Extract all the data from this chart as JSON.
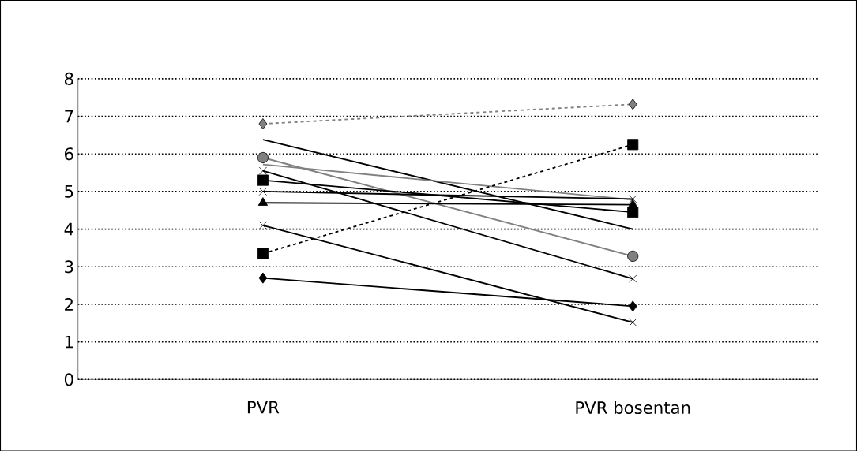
{
  "chart_data": {
    "type": "line",
    "categories": [
      "PVR",
      "PVR bosentan"
    ],
    "ylim": [
      0,
      8
    ],
    "yticks": [
      0,
      1,
      2,
      3,
      4,
      5,
      6,
      7,
      8
    ],
    "grid": "y",
    "series": [
      {
        "color": "#808080",
        "values": [
          6.8,
          7.32
        ],
        "marker": "diamond",
        "line_style": "dashed"
      },
      {
        "color": "#000000",
        "values": [
          6.38,
          4.0
        ],
        "marker": "none",
        "line_style": "solid"
      },
      {
        "color": "#808080",
        "values": [
          5.9,
          3.28
        ],
        "marker": "circle",
        "line_style": "solid"
      },
      {
        "color": "#808080",
        "values": [
          5.72,
          4.78
        ],
        "marker": "none",
        "line_style": "solid"
      },
      {
        "color": "#000000",
        "values": [
          5.55,
          2.68
        ],
        "marker": "cross",
        "line_style": "solid"
      },
      {
        "color": "#000000",
        "values": [
          5.3,
          4.45
        ],
        "marker": "square",
        "line_style": "solid"
      },
      {
        "color": "#000000",
        "values": [
          5.0,
          4.8
        ],
        "marker": "cross",
        "line_style": "solid"
      },
      {
        "color": "#000000",
        "values": [
          4.7,
          4.65
        ],
        "marker": "triangle",
        "line_style": "solid"
      },
      {
        "color": "#000000",
        "values": [
          4.1,
          1.52
        ],
        "marker": "cross",
        "line_style": "solid"
      },
      {
        "color": "#000000",
        "values": [
          3.35,
          6.25
        ],
        "marker": "square",
        "line_style": "dashed"
      },
      {
        "color": "#000000",
        "values": [
          2.7,
          1.95
        ],
        "marker": "diamond",
        "line_style": "solid"
      }
    ]
  }
}
